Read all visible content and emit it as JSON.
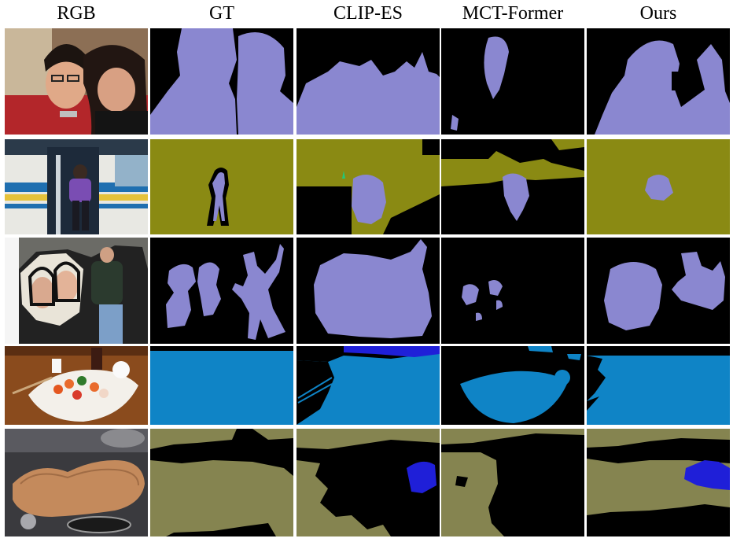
{
  "figure": {
    "column_headers": [
      "RGB",
      "GT",
      "CLIP-ES",
      "MCT-Former",
      "Ours"
    ],
    "rows": [
      {
        "scene": "two people selfie",
        "class_color": "#8a87d0"
      },
      {
        "scene": "person boarding bus",
        "class_color": "#8a8a13"
      },
      {
        "scene": "photo collage with people",
        "class_color": "#8a87d0"
      },
      {
        "scene": "sushi plate on table",
        "class_color": "#0f84c6"
      },
      {
        "scene": "motorcycle seat",
        "class_color": "#858450"
      }
    ],
    "palette": {
      "person": "#8a87d0",
      "bus": "#8a8a13",
      "dining_table": "#0f84c6",
      "motorbike": "#858450",
      "other_class": "#1f1fd8",
      "spot_class": "#21c87a",
      "background": "#000000"
    }
  }
}
